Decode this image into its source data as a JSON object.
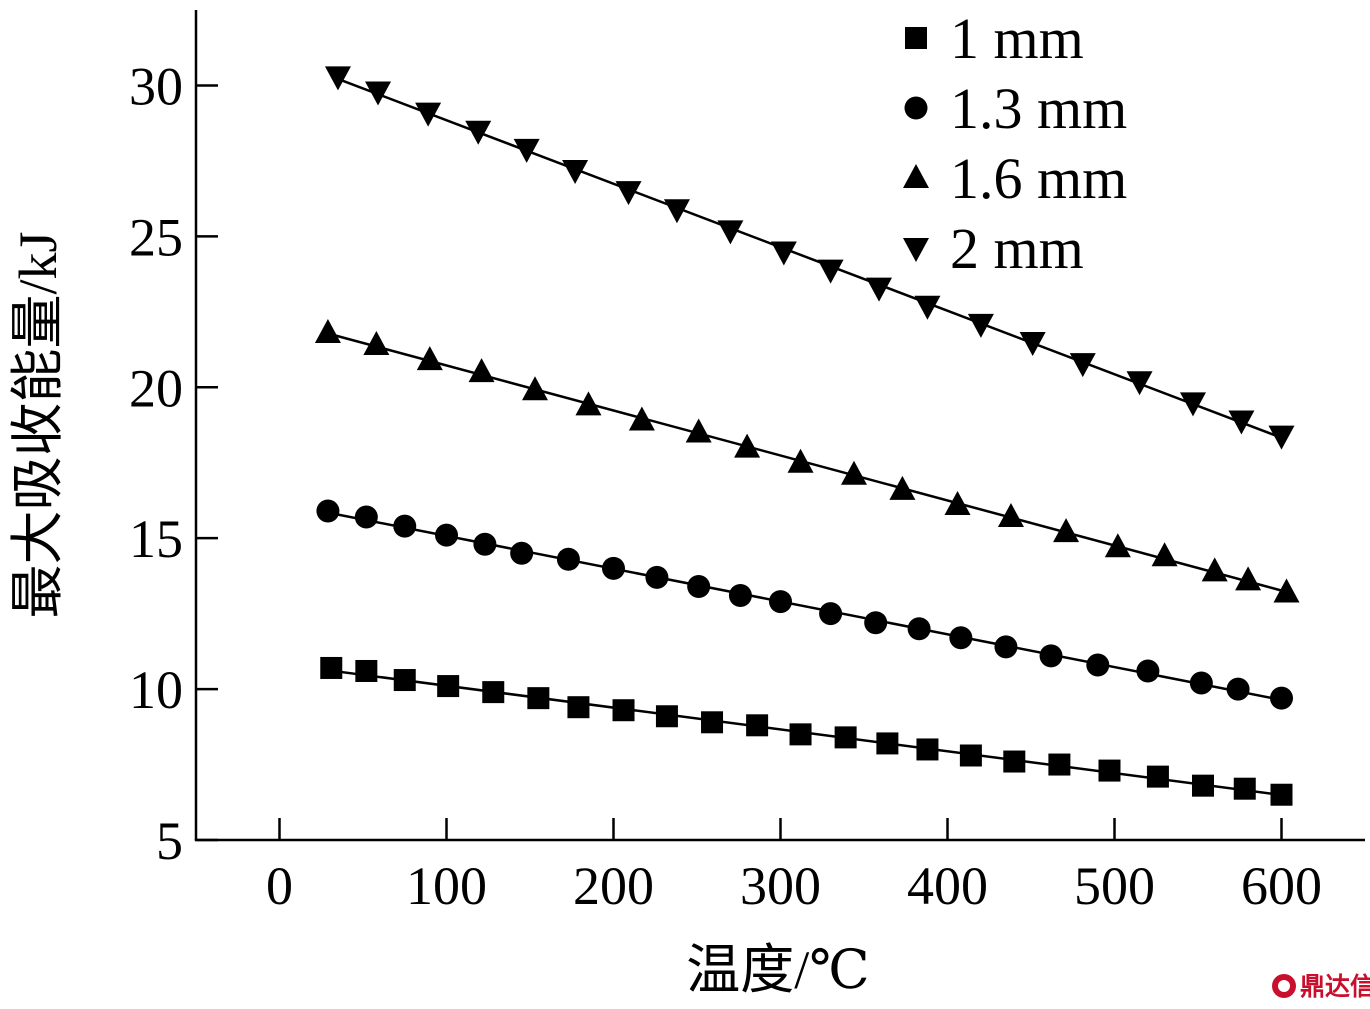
{
  "chart_data": {
    "type": "scatter",
    "title": "",
    "xlabel": "温度/℃",
    "ylabel": "最大吸收能量/kJ",
    "xlim": [
      -50,
      650
    ],
    "ylim": [
      5,
      32.5
    ],
    "xticks": [
      0,
      100,
      200,
      300,
      400,
      500,
      600
    ],
    "yticks": [
      5,
      10,
      15,
      20,
      25,
      30
    ],
    "grid": false,
    "legend": "top-right",
    "series": [
      {
        "name": "1 mm",
        "marker": "square",
        "x": [
          31,
          52,
          75,
          101,
          128,
          155,
          179,
          206,
          232,
          259,
          286,
          312,
          339,
          364,
          388,
          414,
          440,
          467,
          497,
          526,
          553,
          578,
          600
        ],
        "y": [
          10.7,
          10.6,
          10.3,
          10.1,
          9.9,
          9.7,
          9.4,
          9.3,
          9.1,
          8.9,
          8.8,
          8.5,
          8.4,
          8.2,
          8.0,
          7.8,
          7.6,
          7.5,
          7.3,
          7.1,
          6.8,
          6.7,
          6.5
        ]
      },
      {
        "name": "1.3 mm",
        "marker": "circle",
        "x": [
          29,
          52,
          75,
          100,
          123,
          145,
          173,
          200,
          226,
          251,
          276,
          300,
          330,
          357,
          383,
          408,
          435,
          462,
          490,
          520,
          552,
          574,
          600
        ],
        "y": [
          15.9,
          15.7,
          15.4,
          15.1,
          14.8,
          14.5,
          14.3,
          14.0,
          13.7,
          13.4,
          13.1,
          12.9,
          12.5,
          12.2,
          12.0,
          11.7,
          11.4,
          11.1,
          10.8,
          10.6,
          10.2,
          10.0,
          9.7
        ]
      },
      {
        "name": "1.6 mm",
        "marker": "triangle-up",
        "x": [
          29,
          58,
          90,
          121,
          153,
          185,
          217,
          251,
          280,
          312,
          344,
          373,
          406,
          438,
          471,
          502,
          530,
          560,
          580,
          603
        ],
        "y": [
          21.8,
          21.4,
          20.9,
          20.5,
          19.9,
          19.4,
          18.9,
          18.5,
          18.0,
          17.5,
          17.1,
          16.6,
          16.1,
          15.7,
          15.2,
          14.7,
          14.4,
          13.9,
          13.6,
          13.2
        ]
      },
      {
        "name": "2 mm",
        "marker": "triangle-down",
        "x": [
          35,
          59,
          89,
          119,
          148,
          177,
          209,
          238,
          270,
          302,
          330,
          359,
          388,
          420,
          451,
          481,
          515,
          547,
          576,
          600
        ],
        "y": [
          30.3,
          29.8,
          29.1,
          28.5,
          27.9,
          27.2,
          26.5,
          25.9,
          25.2,
          24.5,
          23.9,
          23.3,
          22.7,
          22.1,
          21.5,
          20.8,
          20.2,
          19.5,
          18.9,
          18.4
        ]
      }
    ],
    "color": "#000000"
  },
  "watermark": {
    "text": "鼎达信",
    "color": "#c8102e"
  }
}
